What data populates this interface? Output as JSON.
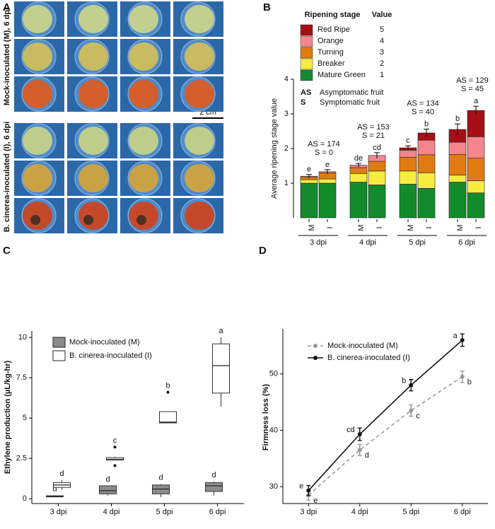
{
  "photo_panel": {
    "panel_label": "A",
    "row_groups": [
      "Mock-inoculated (M), 6 dpi",
      "B. cinerea-inoculated (I), 6 dpi"
    ],
    "scale_bar": "2 cm"
  },
  "chart_data": [
    {
      "type": "stacked_bar",
      "panel_label": "B",
      "y_label": "Average ripening stage value",
      "categories": [
        "M",
        "I",
        "M",
        "I",
        "M",
        "I",
        "M",
        "I"
      ],
      "group_labels": [
        "3 dpi",
        "4 dpi",
        "5 dpi",
        "6 dpi"
      ],
      "legend_title": "Ripening stage",
      "legend_value_title": "Value",
      "series": [
        {
          "name": "Mature Green",
          "stage_value": 1,
          "color": "#138a2c",
          "values": [
            1.0,
            1.0,
            1.03,
            0.95,
            0.97,
            0.85,
            1.03,
            0.72
          ]
        },
        {
          "name": "Breaker",
          "stage_value": 2,
          "color": "#f7ec3f",
          "values": [
            0.1,
            0.12,
            0.25,
            0.4,
            0.38,
            0.45,
            0.2,
            0.35
          ]
        },
        {
          "name": "Turning",
          "stage_value": 3,
          "color": "#e07b12",
          "values": [
            0.08,
            0.18,
            0.17,
            0.28,
            0.4,
            0.52,
            0.6,
            0.65
          ]
        },
        {
          "name": "Orange",
          "stage_value": 4,
          "color": "#f4858f",
          "values": [
            0.02,
            0.03,
            0.07,
            0.17,
            0.2,
            0.42,
            0.35,
            0.62
          ]
        },
        {
          "name": "Red Ripe",
          "stage_value": 5,
          "color": "#a50f15",
          "values": [
            0,
            0,
            0,
            0,
            0.07,
            0.21,
            0.37,
            0.76
          ]
        }
      ],
      "errors": [
        0.05,
        0.06,
        0.05,
        0.08,
        0.06,
        0.11,
        0.16,
        0.12
      ],
      "letters": [
        "e",
        "e",
        "de",
        "cd",
        "c",
        "b",
        "b",
        "a"
      ],
      "annotations": [
        [
          "AS = 174",
          "S = 0"
        ],
        [
          "AS = 153",
          "S = 21"
        ],
        [
          "AS = 134",
          "S = 40"
        ],
        [
          "AS = 129",
          "S = 45"
        ]
      ],
      "abbreviations": [
        {
          "abbr": "AS",
          "text": "Asymptomatic fruit"
        },
        {
          "abbr": "S",
          "text": "Symptomatic fruit"
        }
      ],
      "ylim": [
        0,
        4
      ],
      "yticks": [
        1,
        2,
        3,
        4
      ]
    },
    {
      "type": "box",
      "panel_label": "C",
      "y_label": "Ethylene production (µL/kg-hr)",
      "categories": [
        "3 dpi",
        "4 dpi",
        "5 dpi",
        "6 dpi"
      ],
      "series": [
        {
          "name": "Mock-inoculated (M)",
          "color": "#8c8c8c",
          "boxes": [
            {
              "min": 0.1,
              "q1": 0.12,
              "median": 0.15,
              "q3": 0.18,
              "max": 0.2,
              "outliers": []
            },
            {
              "min": 0.2,
              "q1": 0.3,
              "median": 0.5,
              "q3": 0.8,
              "max": 0.8,
              "outliers": []
            },
            {
              "min": 0.1,
              "q1": 0.3,
              "median": 0.6,
              "q3": 0.85,
              "max": 0.9,
              "outliers": []
            },
            {
              "min": 0.2,
              "q1": 0.45,
              "median": 0.8,
              "q3": 1.0,
              "max": 1.05,
              "outliers": []
            }
          ],
          "letters": [
            "d",
            "d",
            "d",
            "d"
          ]
        },
        {
          "name": "B. cinerea-inoculated (I)",
          "color": "#ffffff",
          "boxes": [
            {
              "min": 0.55,
              "q1": 0.7,
              "median": 0.85,
              "q3": 1.0,
              "max": 1.15,
              "outliers": []
            },
            {
              "min": 2.38,
              "q1": 2.4,
              "median": 2.45,
              "q3": 2.55,
              "max": 2.6,
              "outliers": [
                3.2,
                2.05
              ]
            },
            {
              "min": 4.7,
              "q1": 4.7,
              "median": 4.75,
              "q3": 5.4,
              "max": 5.4,
              "outliers": [
                6.6
              ]
            },
            {
              "min": 5.7,
              "q1": 6.55,
              "median": 8.25,
              "q3": 9.6,
              "max": 10.0,
              "outliers": []
            }
          ],
          "letters": [
            "d",
            "c",
            "b",
            "a"
          ]
        }
      ],
      "ylim": [
        -0.3,
        10.4
      ],
      "yticks": [
        0,
        2.5,
        5,
        7.5,
        10
      ]
    },
    {
      "type": "line",
      "panel_label": "D",
      "y_label": "Firmness loss (%)",
      "categories": [
        "3 dpi",
        "4 dpi",
        "5 dpi",
        "6 dpi"
      ],
      "series": [
        {
          "name": "Mock-inoculated (M)",
          "color": "#999999",
          "dash": true,
          "values": [
            28.5,
            36.5,
            43.5,
            49.5
          ],
          "errors": [
            0.9,
            1.0,
            1.0,
            1.0
          ],
          "letters": [
            "e",
            "d",
            "c",
            "b"
          ]
        },
        {
          "name": "B. cinerea-inoculated (I)",
          "color": "#111111",
          "dash": false,
          "values": [
            29.3,
            39.3,
            48.0,
            56.0
          ],
          "errors": [
            0.9,
            1.1,
            1.0,
            1.1
          ],
          "letters": [
            "e",
            "cd",
            "b",
            "a"
          ]
        }
      ],
      "ylim": [
        27,
        58
      ],
      "yticks": [
        30,
        40,
        50
      ]
    }
  ]
}
